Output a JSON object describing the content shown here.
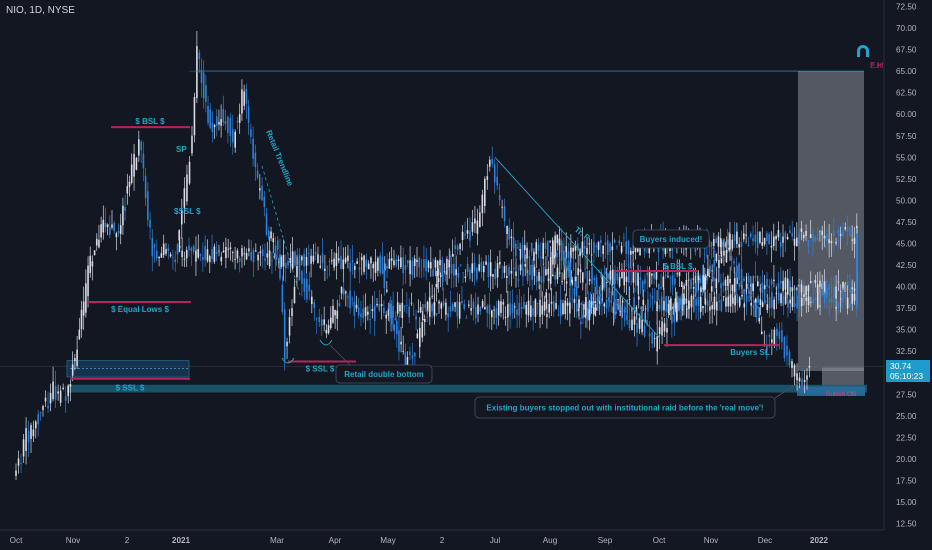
{
  "header": {
    "symbol": "NIO, 1D, NYSE"
  },
  "colors": {
    "background": "#131722",
    "candle_up": "#d9dce3",
    "candle_down": "#2f7fd6",
    "liquidity_line": "#b7245c",
    "annotation": "#1fa6c9",
    "shade": "#8a8f99"
  },
  "last_price": {
    "value": "30.74",
    "countdown": "05:10:23"
  },
  "logo_icon": "horseshoe-icon",
  "chart_data": {
    "type": "candlestick",
    "title": "",
    "ylim": [
      12.5,
      72.5
    ],
    "y_ticks": [
      "72.50",
      "70.00",
      "67.50",
      "65.00",
      "62.50",
      "60.00",
      "57.50",
      "55.00",
      "52.50",
      "50.00",
      "47.50",
      "45.00",
      "42.50",
      "40.00",
      "37.50",
      "35.00",
      "32.50",
      "30.00",
      "27.50",
      "25.00",
      "22.50",
      "20.00",
      "17.50",
      "15.00",
      "12.50"
    ],
    "x_ticks": [
      "Oct",
      "Nov",
      "2",
      "2021",
      "Mar",
      "Apr",
      "May",
      "2",
      "Jul",
      "Aug",
      "Sep",
      "Oct",
      "Nov",
      "Dec",
      "2022"
    ],
    "trend_path": [
      [
        "Oct-01",
        17.5
      ],
      [
        "Oct-08",
        22.5
      ],
      [
        "Oct-16",
        25.0
      ],
      [
        "Oct-23",
        28.0
      ],
      [
        "Oct-30",
        27.0
      ],
      [
        "Nov-06",
        33.0
      ],
      [
        "Nov-13",
        43.0
      ],
      [
        "Nov-20",
        48.0
      ],
      [
        "Nov-27",
        45.5
      ],
      [
        "Dec-04",
        52.0
      ],
      [
        "Dec-09",
        57.0
      ],
      [
        "Dec-16",
        44.0
      ],
      [
        "Dec-22",
        39.5
      ],
      [
        "Dec-29",
        46.0
      ],
      [
        "Jan-05",
        52.0
      ],
      [
        "Jan-08",
        58.0
      ],
      [
        "Jan-11",
        67.0
      ],
      [
        "Jan-19",
        58.0
      ],
      [
        "Jan-27",
        60.0
      ],
      [
        "Feb-03",
        57.0
      ],
      [
        "Feb-10",
        63.0
      ],
      [
        "Feb-17",
        53.0
      ],
      [
        "Feb-24",
        47.0
      ],
      [
        "Mar-01",
        44.0
      ],
      [
        "Mar-05",
        32.5
      ],
      [
        "Mar-12",
        42.0
      ],
      [
        "Mar-19",
        39.0
      ],
      [
        "Mar-26",
        35.0
      ],
      [
        "Apr-01",
        36.0
      ],
      [
        "Apr-08",
        40.0
      ],
      [
        "Apr-15",
        37.0
      ],
      [
        "Apr-22",
        38.5
      ],
      [
        "Apr-29",
        41.0
      ],
      [
        "May-06",
        35.0
      ],
      [
        "May-12",
        31.0
      ],
      [
        "May-19",
        33.5
      ],
      [
        "May-26",
        38.0
      ],
      [
        "Jun-02",
        41.0
      ],
      [
        "Jun-09",
        44.0
      ],
      [
        "Jun-16",
        46.0
      ],
      [
        "Jun-23",
        47.0
      ],
      [
        "Jun-30",
        55.0
      ],
      [
        "Jul-08",
        47.0
      ],
      [
        "Jul-15",
        44.0
      ],
      [
        "Jul-22",
        46.0
      ],
      [
        "Jul-29",
        38.0
      ],
      [
        "Aug-05",
        46.0
      ],
      [
        "Aug-12",
        42.0
      ],
      [
        "Aug-19",
        36.0
      ],
      [
        "Aug-26",
        38.0
      ],
      [
        "Sep-02",
        40.5
      ],
      [
        "Sep-09",
        37.0
      ],
      [
        "Sep-16",
        36.0
      ],
      [
        "Sep-23",
        35.5
      ],
      [
        "Sep-30",
        33.5
      ],
      [
        "Oct-07",
        36.0
      ],
      [
        "Oct-14",
        37.5
      ],
      [
        "Oct-21",
        39.0
      ],
      [
        "Oct-28",
        41.0
      ],
      [
        "Nov-04",
        42.5
      ],
      [
        "Nov-11",
        44.0
      ],
      [
        "Nov-18",
        41.0
      ],
      [
        "Nov-25",
        39.0
      ],
      [
        "Dec-02",
        33.0
      ],
      [
        "Dec-09",
        35.0
      ],
      [
        "Dec-16",
        31.0
      ],
      [
        "Dec-23",
        28.5
      ],
      [
        "Dec-27",
        30.74
      ]
    ],
    "levels": [
      {
        "label": "$ BSL $",
        "price": 58.5,
        "from": "Dec-02",
        "to": "Jan-05",
        "color": "#b7245c"
      },
      {
        "label": "$ Equal Lows $",
        "price": 38.2,
        "from": "Nov-08",
        "to": "Jan-05",
        "color": "#b7245c"
      },
      {
        "label": "$ SSL $",
        "price": 31.3,
        "from": "Mar-03",
        "to": "Apr-15",
        "color": "#b7245c"
      },
      {
        "label": "$ SSL $",
        "price": 29.3,
        "from": "Nov-01",
        "to": "Jan-05",
        "color": "#b7245c"
      },
      {
        "label": "$ BSL $",
        "price": 41.8,
        "from": "Sep-08",
        "to": "Oct-30",
        "color": "#b7245c"
      },
      {
        "label": "Buyers SL",
        "price": 33.2,
        "from": "Oct-04",
        "to": "Dec-06",
        "color": "#b7245c"
      },
      {
        "label": "E.H",
        "price": 65.0,
        "from": "Jan-05",
        "to": "Jan-08-22",
        "color": "#1fa6c9"
      }
    ],
    "annotations": [
      "SP",
      "$SSL $",
      "Retail Trendline",
      "Retail double bottom",
      "Tr. P",
      "Buyers induced!",
      "Existing buyers stopped out with institutional raid before the 'real move'!",
      "Bullish OB"
    ]
  }
}
